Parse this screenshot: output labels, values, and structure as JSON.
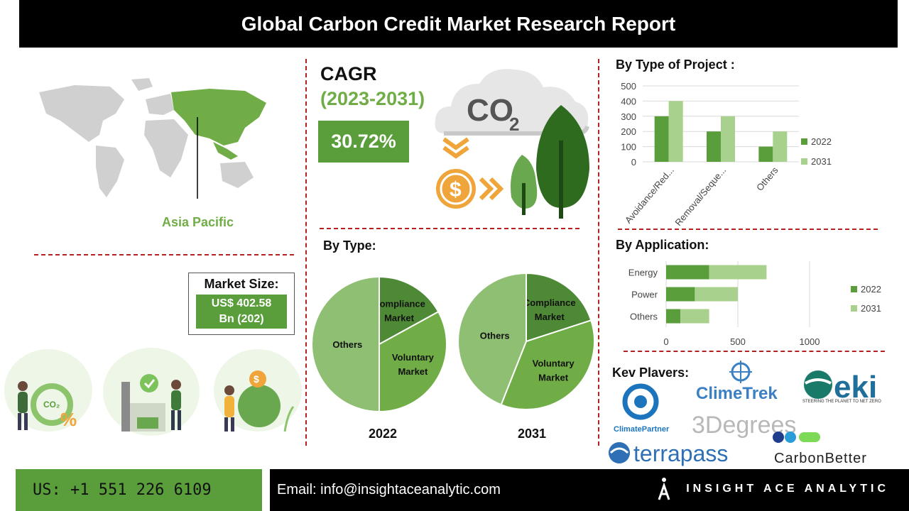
{
  "header": {
    "title": "Global Carbon Credit Market Research Report"
  },
  "map": {
    "region_label": "Asia Pacific",
    "highlight_color": "#70ad47"
  },
  "cagr": {
    "title": "CAGR",
    "period": "(2023-2031)",
    "value": "30.72%",
    "co2_label": "CO",
    "co2_sub": "2",
    "currency_icon": "$"
  },
  "market_size": {
    "title": "Market Size:",
    "line1": "US$  402.58",
    "line2": "Bn (202)"
  },
  "colors": {
    "dark_green": "#5a9e3c",
    "light_green": "#a9d18e",
    "mid_green": "#70ad47",
    "pie_dark": "#4e8a35",
    "pie_light": "#8fbf73",
    "red_dash": "#b22222"
  },
  "by_type": {
    "title": "By Type:",
    "pies": [
      {
        "year": "2022",
        "slices": [
          {
            "label_lines": [
              "Compliance",
              "Market"
            ],
            "value": 17
          },
          {
            "label_lines": [
              "Voluntary",
              "Market"
            ],
            "value": 33
          },
          {
            "label_lines": [
              "Others"
            ],
            "value": 50
          }
        ]
      },
      {
        "year": "2031",
        "slices": [
          {
            "label_lines": [
              "Compliance",
              "Market"
            ],
            "value": 20
          },
          {
            "label_lines": [
              "Voluntary",
              "Market"
            ],
            "value": 36
          },
          {
            "label_lines": [
              "Others"
            ],
            "value": 44
          }
        ]
      }
    ]
  },
  "chart_data": [
    {
      "type": "bar",
      "title": "By Type of Project :",
      "categories": [
        "Avoidance/Red...",
        "Removal/Seque...",
        "Others"
      ],
      "series": [
        {
          "name": "2022",
          "values": [
            300,
            200,
            100
          ],
          "color": "#5a9e3c"
        },
        {
          "name": "2031",
          "values": [
            400,
            300,
            200
          ],
          "color": "#a9d18e"
        }
      ],
      "ylim": [
        0,
        500
      ],
      "yticks": [
        0,
        100,
        200,
        300,
        400,
        500
      ],
      "grid": true,
      "legend": "right"
    },
    {
      "type": "bar",
      "orientation": "horizontal-stacked",
      "title": "By Application:",
      "categories": [
        "Energy",
        "Power",
        "Others"
      ],
      "series": [
        {
          "name": "2022",
          "values": [
            300,
            200,
            100
          ],
          "color": "#5a9e3c"
        },
        {
          "name": "2031",
          "values": [
            400,
            300,
            200
          ],
          "color": "#a9d18e"
        }
      ],
      "xlim": [
        0,
        1000
      ],
      "xticks": [
        0,
        500,
        1000
      ],
      "grid": true,
      "legend": "right"
    }
  ],
  "key_players": {
    "title": "Kev Plavers:",
    "logos": [
      {
        "name": "ClimeTrek",
        "color": "#3b7fc4"
      },
      {
        "name": "eki",
        "tagline": "STEERING THE PLANET TO NET ZERO",
        "color": "#1f6f9a"
      },
      {
        "name": "ClimatePartner",
        "color": "#1c75bc"
      },
      {
        "name": "3Degrees",
        "color": "#b8b8b8"
      },
      {
        "name": "terrapass",
        "color": "#2e6fb5"
      },
      {
        "name": "CarbonBetter",
        "color": "#222222"
      }
    ]
  },
  "footer": {
    "phone": "US: +1 551 226 6109",
    "email": "Email: info@insightaceanalytic.com",
    "brand": "INSIGHT ACE ANALYTIC"
  }
}
